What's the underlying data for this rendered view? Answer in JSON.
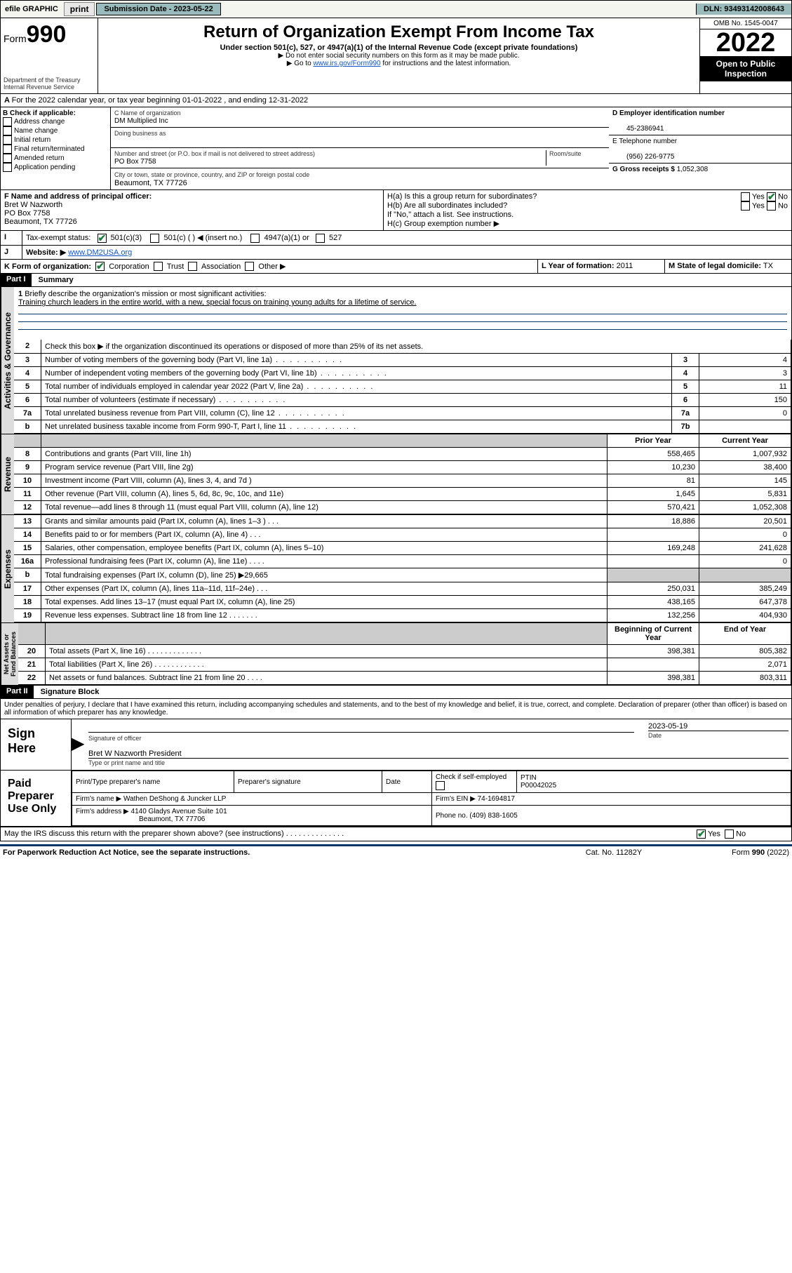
{
  "top": {
    "efile": "efile GRAPHIC",
    "print": "print",
    "sub_date_label": "Submission Date - 2023-05-22",
    "dln": "DLN: 93493142008643"
  },
  "header": {
    "form_label": "Form",
    "form_num": "990",
    "dept": "Department of the Treasury",
    "irs": "Internal Revenue Service",
    "title": "Return of Organization Exempt From Income Tax",
    "subtitle": "Under section 501(c), 527, or 4947(a)(1) of the Internal Revenue Code (except private foundations)",
    "note1": "▶ Do not enter social security numbers on this form as it may be made public.",
    "note2_pre": "▶ Go to ",
    "note2_link": "www.irs.gov/Form990",
    "note2_post": " for instructions and the latest information.",
    "omb": "OMB No. 1545-0047",
    "year": "2022",
    "open": "Open to Public Inspection"
  },
  "A": {
    "text": "For the 2022 calendar year, or tax year beginning 01-01-2022   , and ending 12-31-2022"
  },
  "B": {
    "label": "B Check if applicable:",
    "opts": [
      "Address change",
      "Name change",
      "Initial return",
      "Final return/terminated",
      "Amended return",
      "Application pending"
    ]
  },
  "C": {
    "name_label": "C Name of organization",
    "name": "DM Multiplied Inc",
    "dba_label": "Doing business as",
    "addr_label": "Number and street (or P.O. box if mail is not delivered to street address)",
    "room_label": "Room/suite",
    "addr": "PO Box 7758",
    "city_label": "City or town, state or province, country, and ZIP or foreign postal code",
    "city": "Beaumont, TX  77726"
  },
  "D": {
    "label": "D Employer identification number",
    "val": "45-2386941"
  },
  "E": {
    "label": "E Telephone number",
    "val": "(956) 226-9775"
  },
  "G": {
    "label": "G Gross receipts $",
    "val": "1,052,308"
  },
  "F": {
    "label": "F  Name and address of principal officer:",
    "name": "Bret W Nazworth",
    "addr1": "PO Box 7758",
    "addr2": "Beaumont, TX  77726"
  },
  "H": {
    "a": "H(a)  Is this a group return for subordinates?",
    "b": "H(b)  Are all subordinates included?",
    "b_note": "If \"No,\" attach a list. See instructions.",
    "c": "H(c)  Group exemption number ▶"
  },
  "I": {
    "label": "Tax-exempt status:",
    "opts": [
      "501(c)(3)",
      "501(c) (  ) ◀ (insert no.)",
      "4947(a)(1) or",
      "527"
    ]
  },
  "J": {
    "label": "Website: ▶",
    "val": "www.DM2USA.org"
  },
  "K": {
    "label": "K Form of organization:",
    "opts": [
      "Corporation",
      "Trust",
      "Association",
      "Other ▶"
    ]
  },
  "L": {
    "label": "L Year of formation:",
    "val": "2011"
  },
  "M": {
    "label": "M State of legal domicile:",
    "val": "TX"
  },
  "part1": {
    "bar": "Part I",
    "title": "Summary",
    "l1_label": "Briefly describe the organization's mission or most significant activities:",
    "l1_text": "Training church leaders in the entire world, with a new, special focus on training young adults for a lifetime of service.",
    "l2": "Check this box ▶        if the organization discontinued its operations or disposed of more than 25% of its net assets.",
    "rows_gov": [
      {
        "n": "3",
        "t": "Number of voting members of the governing body (Part VI, line 1a)",
        "b": "3",
        "v": "4"
      },
      {
        "n": "4",
        "t": "Number of independent voting members of the governing body (Part VI, line 1b)",
        "b": "4",
        "v": "3"
      },
      {
        "n": "5",
        "t": "Total number of individuals employed in calendar year 2022 (Part V, line 2a)",
        "b": "5",
        "v": "11"
      },
      {
        "n": "6",
        "t": "Total number of volunteers (estimate if necessary)",
        "b": "6",
        "v": "150"
      },
      {
        "n": "7a",
        "t": "Total unrelated business revenue from Part VIII, column (C), line 12",
        "b": "7a",
        "v": "0"
      },
      {
        "n": "b",
        "t": "Net unrelated business taxable income from Form 990-T, Part I, line 11",
        "b": "7b",
        "v": ""
      }
    ],
    "hdr_prior": "Prior Year",
    "hdr_curr": "Current Year",
    "rows_rev": [
      {
        "n": "8",
        "t": "Contributions and grants (Part VIII, line 1h)",
        "p": "558,465",
        "c": "1,007,932"
      },
      {
        "n": "9",
        "t": "Program service revenue (Part VIII, line 2g)",
        "p": "10,230",
        "c": "38,400"
      },
      {
        "n": "10",
        "t": "Investment income (Part VIII, column (A), lines 3, 4, and 7d )",
        "p": "81",
        "c": "145"
      },
      {
        "n": "11",
        "t": "Other revenue (Part VIII, column (A), lines 5, 6d, 8c, 9c, 10c, and 11e)",
        "p": "1,645",
        "c": "5,831"
      },
      {
        "n": "12",
        "t": "Total revenue—add lines 8 through 11 (must equal Part VIII, column (A), line 12)",
        "p": "570,421",
        "c": "1,052,308"
      }
    ],
    "rows_exp": [
      {
        "n": "13",
        "t": "Grants and similar amounts paid (Part IX, column (A), lines 1–3 )   .   .   .",
        "p": "18,886",
        "c": "20,501"
      },
      {
        "n": "14",
        "t": "Benefits paid to or for members (Part IX, column (A), line 4)   .   .   .",
        "p": "",
        "c": "0"
      },
      {
        "n": "15",
        "t": "Salaries, other compensation, employee benefits (Part IX, column (A), lines 5–10)",
        "p": "169,248",
        "c": "241,628"
      },
      {
        "n": "16a",
        "t": "Professional fundraising fees (Part IX, column (A), line 11e)   .   .   .   .",
        "p": "",
        "c": "0"
      },
      {
        "n": "b",
        "t": "Total fundraising expenses (Part IX, column (D), line 25) ▶29,665",
        "p": "shade",
        "c": "shade"
      },
      {
        "n": "17",
        "t": "Other expenses (Part IX, column (A), lines 11a–11d, 11f–24e)   .   .   .",
        "p": "250,031",
        "c": "385,249"
      },
      {
        "n": "18",
        "t": "Total expenses. Add lines 13–17 (must equal Part IX, column (A), line 25)",
        "p": "438,165",
        "c": "647,378"
      },
      {
        "n": "19",
        "t": "Revenue less expenses. Subtract line 18 from line 12  .  .  .  .  .  .  .",
        "p": "132,256",
        "c": "404,930"
      }
    ],
    "hdr_begin": "Beginning of Current Year",
    "hdr_end": "End of Year",
    "rows_net": [
      {
        "n": "20",
        "t": "Total assets (Part X, line 16)  .  .  .  .  .  .  .  .  .  .  .  .  .",
        "p": "398,381",
        "c": "805,382"
      },
      {
        "n": "21",
        "t": "Total liabilities (Part X, line 26)  .  .  .  .  .  .  .  .  .  .  .  .",
        "p": "",
        "c": "2,071"
      },
      {
        "n": "22",
        "t": "Net assets or fund balances. Subtract line 21 from line 20  .  .  .  .",
        "p": "398,381",
        "c": "803,311"
      }
    ]
  },
  "part2": {
    "bar": "Part II",
    "title": "Signature Block",
    "penalty": "Under penalties of perjury, I declare that I have examined this return, including accompanying schedules and statements, and to the best of my knowledge and belief, it is true, correct, and complete. Declaration of preparer (other than officer) is based on all information of which preparer has any knowledge.",
    "sign_here": "Sign Here",
    "sig_officer": "Signature of officer",
    "sig_date": "2023-05-19",
    "date_label": "Date",
    "officer_name": "Bret W Nazworth President",
    "officer_type": "Type or print name and title",
    "paid": "Paid Preparer Use Only",
    "prep_name_label": "Print/Type preparer's name",
    "prep_sig_label": "Preparer's signature",
    "check_self": "Check        if self-employed",
    "ptin_label": "PTIN",
    "ptin": "P00042025",
    "firm_name_label": "Firm's name     ▶",
    "firm_name": "Wathen DeShong & Juncker LLP",
    "firm_ein_label": "Firm's EIN ▶",
    "firm_ein": "74-1694817",
    "firm_addr_label": "Firm's address ▶",
    "firm_addr1": "4140 Gladys Avenue Suite 101",
    "firm_addr2": "Beaumont, TX  77706",
    "phone_label": "Phone no.",
    "phone": "(409) 838-1605",
    "discuss": "May the IRS discuss this return with the preparer shown above? (see instructions)   .   .   .   .   .   .   .   .   .   .   .   .   .   ."
  },
  "footer": {
    "pra": "For Paperwork Reduction Act Notice, see the separate instructions.",
    "cat": "Cat. No. 11282Y",
    "form": "Form 990 (2022)"
  },
  "yes": "Yes",
  "no": "No"
}
